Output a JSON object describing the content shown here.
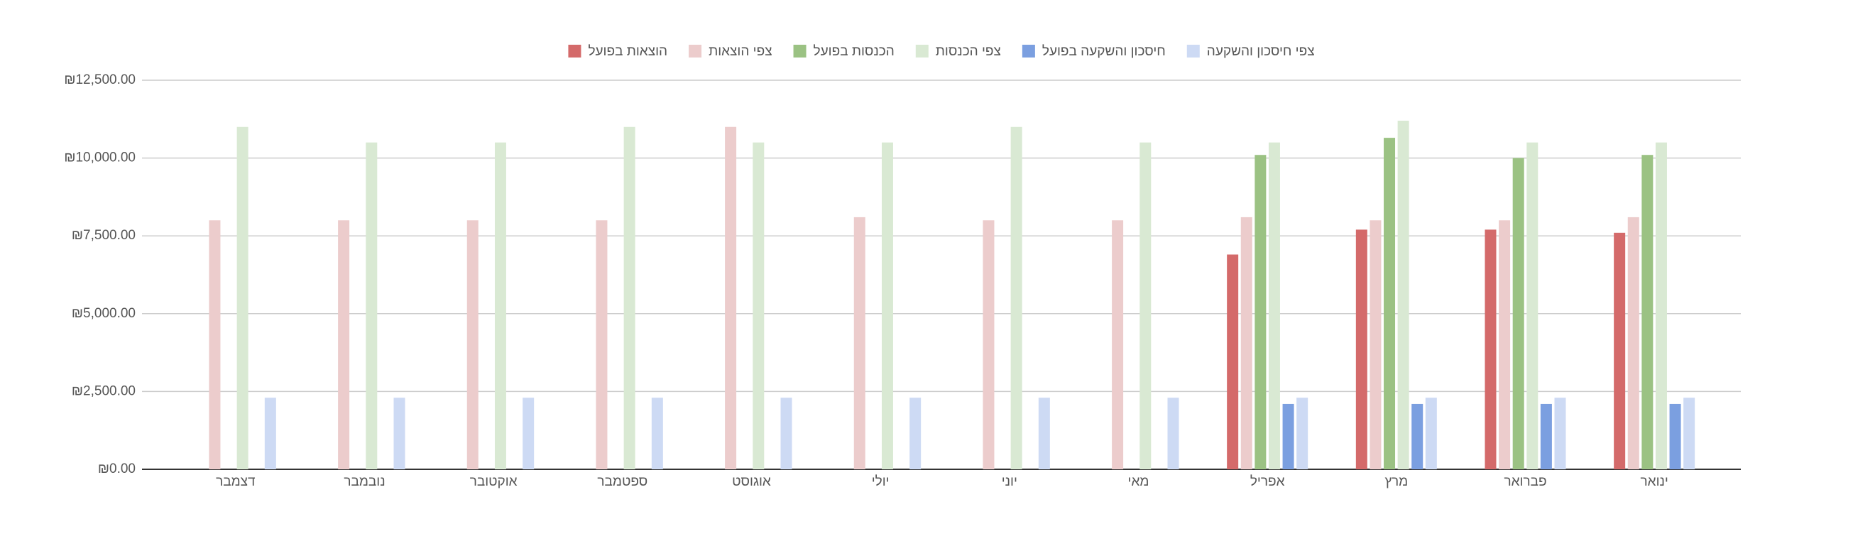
{
  "chart_data": {
    "type": "bar",
    "categories": [
      "דצמבר",
      "נובמבר",
      "אוקטובר",
      "ספטמבר",
      "אוגוסט",
      "יולי",
      "יוני",
      "מאי",
      "אפריל",
      "מרץ",
      "פברואר",
      "ינואר"
    ],
    "series": [
      {
        "name": "הוצאות בפועל",
        "color": "#d46a6a",
        "values": [
          null,
          null,
          null,
          null,
          null,
          null,
          null,
          null,
          6900,
          7700,
          7700,
          7600
        ]
      },
      {
        "name": "צפי הוצאות",
        "color": "#eccccc",
        "values": [
          8000,
          8000,
          8000,
          8000,
          11000,
          8100,
          8000,
          8000,
          8100,
          8000,
          8000,
          8100
        ]
      },
      {
        "name": "הכנסות בפועל",
        "color": "#9bc283",
        "values": [
          null,
          null,
          null,
          null,
          null,
          null,
          null,
          null,
          10100,
          10650,
          10000,
          10100
        ]
      },
      {
        "name": "צפי הכנסות",
        "color": "#d9e9d3",
        "values": [
          11000,
          10500,
          10500,
          11000,
          10500,
          10500,
          11000,
          10500,
          10500,
          11200,
          10500,
          10500
        ]
      },
      {
        "name": "חיסכון והשקעה בפועל",
        "color": "#7b9fe0",
        "values": [
          null,
          null,
          null,
          null,
          null,
          null,
          null,
          null,
          2100,
          2100,
          2100,
          2100
        ]
      },
      {
        "name": "צפי חיסכון והשקעה",
        "color": "#cddaf4",
        "values": [
          2300,
          2300,
          2300,
          2300,
          2300,
          2300,
          2300,
          2300,
          2300,
          2300,
          2300,
          2300
        ]
      }
    ],
    "ylim": [
      0,
      12500
    ],
    "yticks": [
      {
        "value": 0,
        "label": "₪0.00"
      },
      {
        "value": 2500,
        "label": "₪2,500.00"
      },
      {
        "value": 5000,
        "label": "₪5,000.00"
      },
      {
        "value": 7500,
        "label": "₪7,500.00"
      },
      {
        "value": 10000,
        "label": "₪10,000.00"
      },
      {
        "value": 12500,
        "label": "₪12,500.00"
      }
    ],
    "grid": true,
    "legend": "top"
  }
}
